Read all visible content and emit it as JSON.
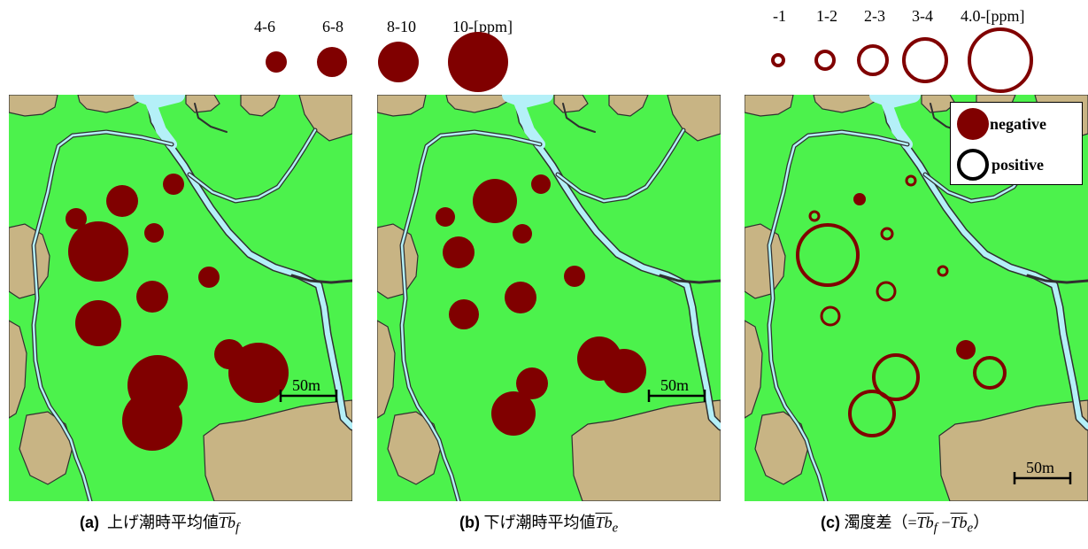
{
  "legend_filled": {
    "labels": [
      "4-6",
      "6-8",
      "8-10",
      "10-[ppm]"
    ]
  },
  "legend_open": {
    "labels": [
      "-1",
      "1-2",
      "2-3",
      "3-4",
      "4.0-[ppm]"
    ]
  },
  "inset_legend": {
    "negative": "negative",
    "positive": "positive"
  },
  "scale_bar": "50m",
  "captions": {
    "a_label": "(a)",
    "a_text": "上げ潮時平均値",
    "b_label": "(b)",
    "b_text": "下げ潮時平均値",
    "c_label": "(c)",
    "c_text": "濁度差（=",
    "c_close": "）",
    "tb": "Tb",
    "sub_f": "f",
    "sub_e": "e",
    "minus": "−"
  },
  "colors": {
    "land": "#4cf24c",
    "bare": "#c8b484",
    "water": "#b4f0f8",
    "marker": "#800000"
  }
}
